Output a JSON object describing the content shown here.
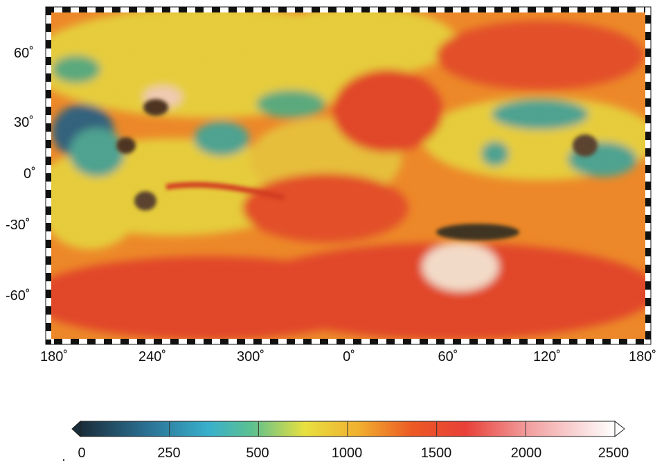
{
  "map": {
    "type": "global-cylindrical-map",
    "longitude_ticks": [
      "180˚",
      "240˚",
      "300˚",
      "0˚",
      "60˚",
      "120˚",
      "180˚"
    ],
    "latitude_ticks": [
      "60˚",
      "30˚",
      "0˚",
      "-30˚",
      "-60˚"
    ],
    "frame_style": "black-white checkered border"
  },
  "colorbar": {
    "tick_labels": [
      "0",
      "250",
      "500",
      "1000",
      "1500",
      "2000",
      "2500"
    ],
    "colors": [
      "#1a2d3a",
      "#2a8ab0",
      "#3ab0c8",
      "#6ac080",
      "#e8e040",
      "#f0a030",
      "#e84020",
      "#f06050",
      "#f8d8d8",
      "#ffffff"
    ],
    "extend": "both"
  },
  "palette": {
    "yellow": "#e8d840",
    "orange": "#ef8a2a",
    "red": "#e2402a",
    "teal": "#3aa8a0",
    "blue": "#1f5f8a",
    "pale": "#f6e8e0"
  },
  "stray_mark": "."
}
